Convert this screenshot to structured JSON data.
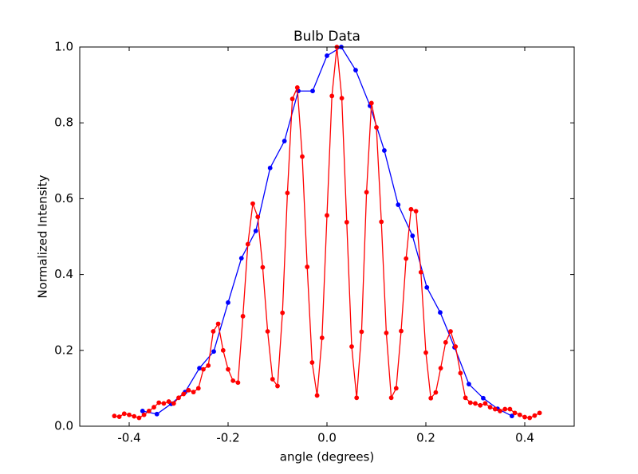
{
  "chart_data": {
    "type": "line",
    "title": "Bulb Data",
    "xlabel": "angle (degrees)",
    "ylabel": "Normalized Intensity",
    "xlim": [
      -0.5,
      0.5
    ],
    "ylim": [
      0,
      1
    ],
    "xticks": [
      -0.4,
      -0.2,
      {
        "value": 0,
        "label": "0.0"
      },
      0.2,
      0.4
    ],
    "yticks": [
      {
        "value": 0,
        "label": "0.0"
      },
      0.2,
      0.4,
      0.6,
      0.8,
      {
        "value": 1,
        "label": "1.0"
      }
    ],
    "grid": false,
    "series": [
      {
        "color": "#0000ff",
        "x": [
          -0.373,
          -0.344,
          -0.315,
          -0.287,
          -0.258,
          -0.229,
          -0.2,
          -0.173,
          -0.144,
          -0.115,
          -0.086,
          -0.058,
          -0.029,
          0.0,
          0.029,
          0.058,
          0.087,
          0.116,
          0.144,
          0.173,
          0.202,
          0.229,
          0.258,
          0.287,
          0.316,
          0.345,
          0.374
        ],
        "values": [
          0.04,
          0.032,
          0.059,
          0.09,
          0.153,
          0.197,
          0.326,
          0.443,
          0.515,
          0.681,
          0.752,
          0.884,
          0.884,
          0.977,
          1.0,
          0.939,
          0.845,
          0.727,
          0.584,
          0.502,
          0.366,
          0.3,
          0.208,
          0.111,
          0.074,
          0.046,
          0.027
        ]
      },
      {
        "color": "#ff0000",
        "x": [
          -0.43,
          -0.42,
          -0.41,
          -0.4,
          -0.39,
          -0.38,
          -0.37,
          -0.36,
          -0.35,
          -0.34,
          -0.33,
          -0.32,
          -0.31,
          -0.3,
          -0.29,
          -0.28,
          -0.27,
          -0.26,
          -0.25,
          -0.24,
          -0.23,
          -0.22,
          -0.21,
          -0.2,
          -0.19,
          -0.18,
          -0.17,
          -0.16,
          -0.15,
          -0.14,
          -0.13,
          -0.12,
          -0.11,
          -0.1,
          -0.09,
          -0.08,
          -0.07,
          -0.06,
          -0.05,
          -0.04,
          -0.03,
          -0.02,
          -0.01,
          0.0,
          0.01,
          0.02,
          0.03,
          0.04,
          0.05,
          0.06,
          0.07,
          0.08,
          0.09,
          0.1,
          0.11,
          0.12,
          0.13,
          0.14,
          0.15,
          0.16,
          0.17,
          0.18,
          0.19,
          0.2,
          0.21,
          0.22,
          0.23,
          0.24,
          0.25,
          0.26,
          0.27,
          0.28,
          0.29,
          0.3,
          0.31,
          0.32,
          0.33,
          0.34,
          0.35,
          0.36,
          0.37,
          0.38,
          0.39,
          0.4,
          0.41,
          0.42,
          0.43
        ],
        "values": [
          0.027,
          0.025,
          0.033,
          0.03,
          0.026,
          0.022,
          0.03,
          0.04,
          0.05,
          0.062,
          0.06,
          0.065,
          0.06,
          0.075,
          0.085,
          0.095,
          0.09,
          0.1,
          0.15,
          0.16,
          0.25,
          0.27,
          0.2,
          0.15,
          0.12,
          0.115,
          0.29,
          0.48,
          0.587,
          0.552,
          0.419,
          0.25,
          0.124,
          0.106,
          0.299,
          0.615,
          0.863,
          0.893,
          0.711,
          0.42,
          0.168,
          0.081,
          0.233,
          0.556,
          0.871,
          1.0,
          0.865,
          0.538,
          0.21,
          0.075,
          0.249,
          0.617,
          0.852,
          0.788,
          0.539,
          0.246,
          0.075,
          0.1,
          0.251,
          0.442,
          0.572,
          0.567,
          0.406,
          0.194,
          0.074,
          0.089,
          0.153,
          0.221,
          0.25,
          0.21,
          0.14,
          0.075,
          0.062,
          0.06,
          0.055,
          0.06,
          0.05,
          0.045,
          0.04,
          0.045,
          0.045,
          0.035,
          0.03,
          0.024,
          0.022,
          0.028,
          0.035
        ]
      }
    ]
  }
}
